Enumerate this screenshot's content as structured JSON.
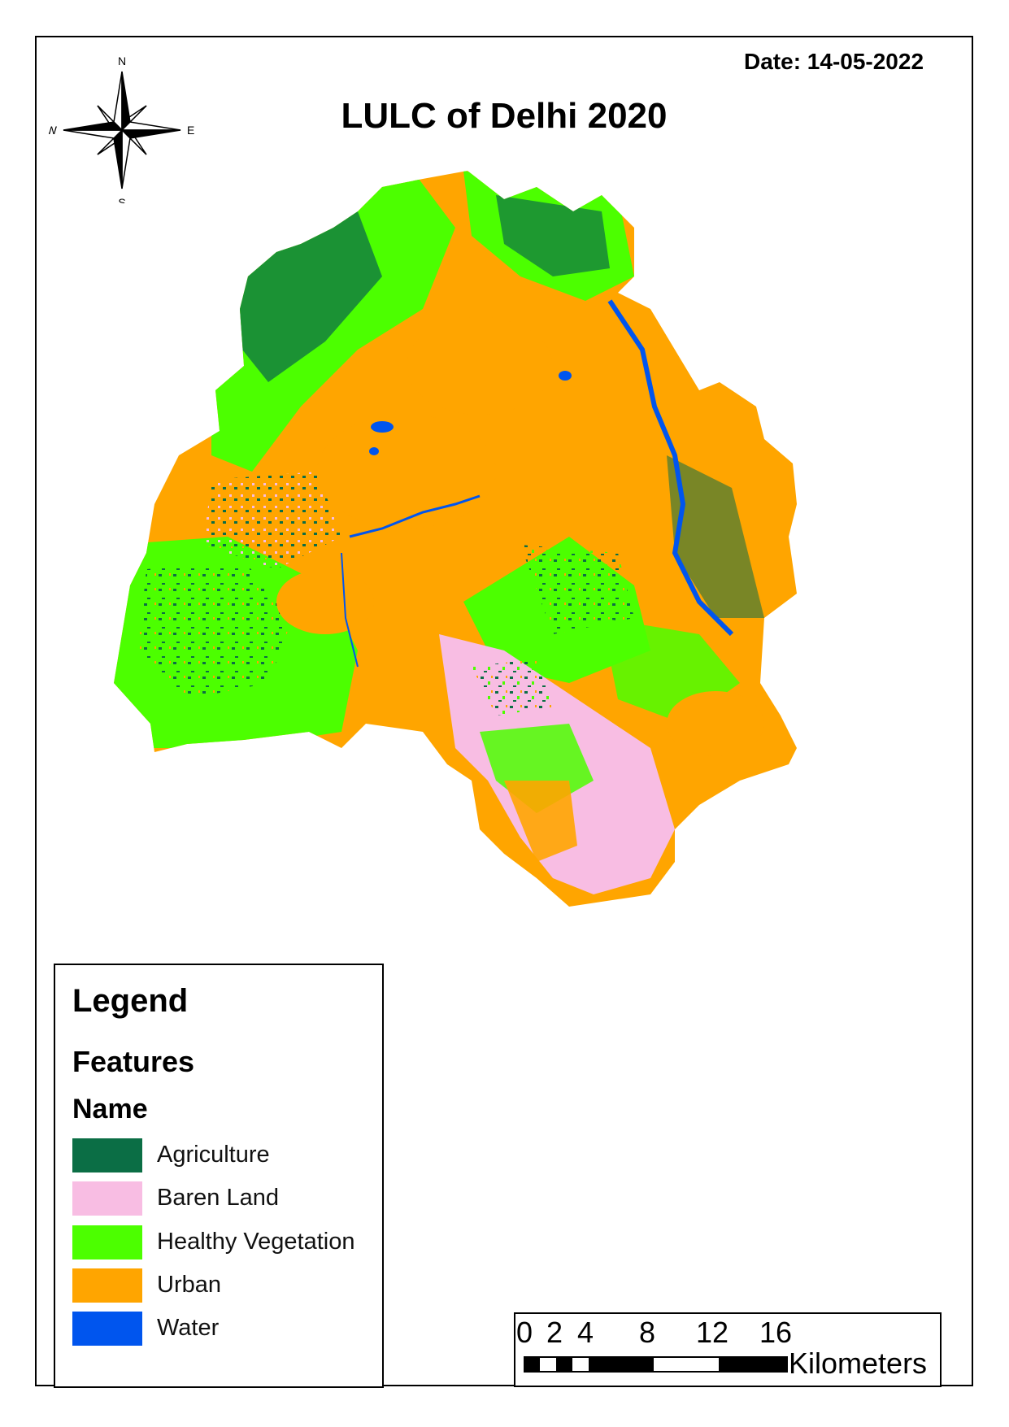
{
  "map": {
    "date": "Date: 14-05-2022",
    "title": "LULC of Delhi 2020"
  },
  "compass": {
    "n": "N",
    "s": "S",
    "e": "E",
    "w": "W"
  },
  "legend": {
    "heading": "Legend",
    "layer": "Features",
    "field": "Name",
    "items": [
      {
        "label": "Agriculture",
        "color": "#0b6e45"
      },
      {
        "label": "Baren Land",
        "color": "#f8bde3"
      },
      {
        "label": "Healthy Vegetation",
        "color": "#4cff00"
      },
      {
        "label": "Urban",
        "color": "#ffa500"
      },
      {
        "label": "Water",
        "color": "#0055ee"
      }
    ]
  },
  "scale_bar": {
    "ticks": [
      "0",
      "2",
      "4",
      "8",
      "12",
      "16"
    ],
    "units": "Kilometers"
  }
}
